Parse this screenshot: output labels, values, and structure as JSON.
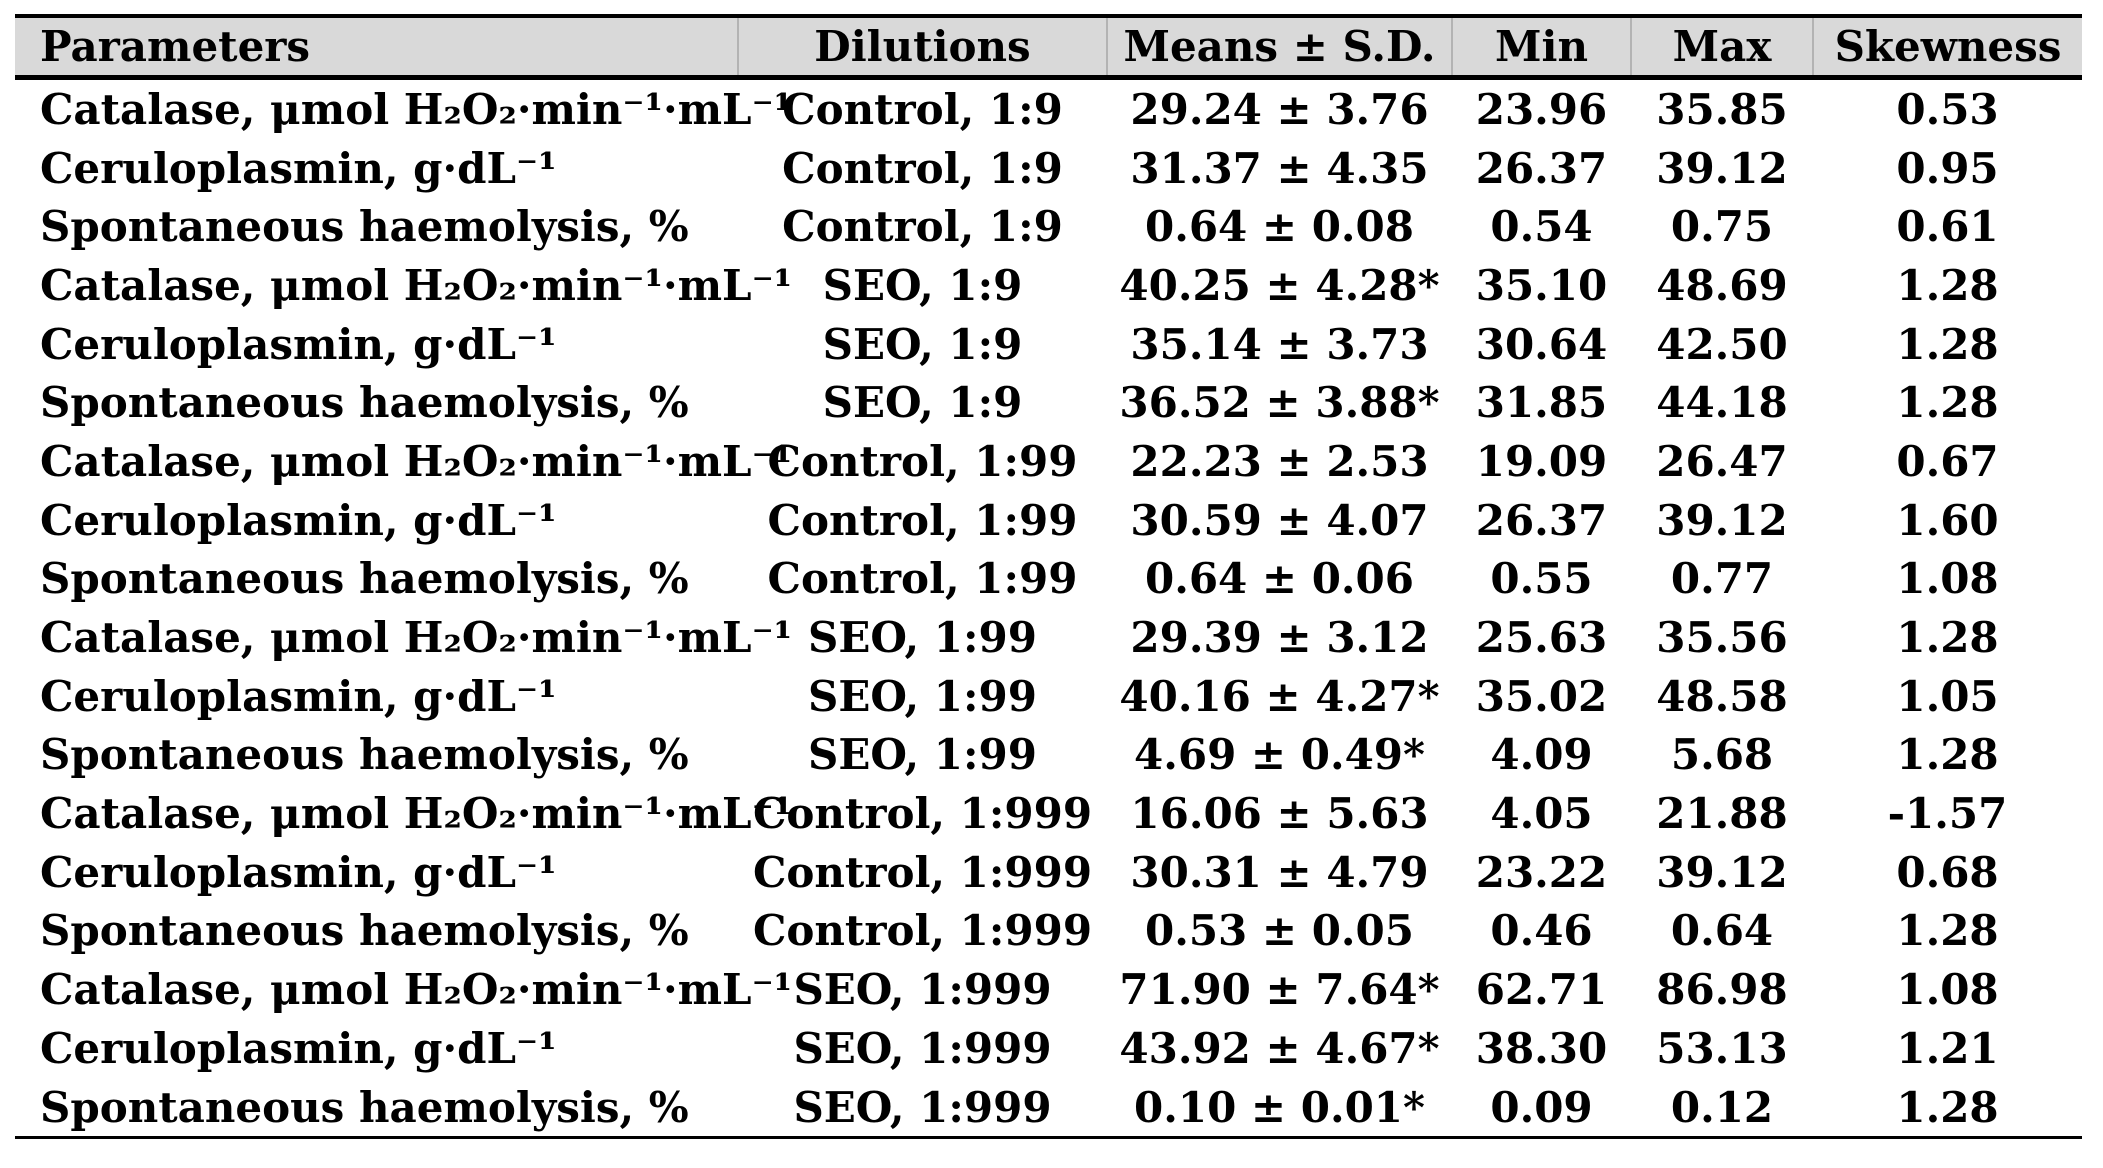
{
  "table": {
    "columns": [
      "Parameters",
      "Dilutions",
      "Means ± S.D.",
      "Min",
      "Max",
      "Skewness"
    ],
    "rows": [
      {
        "parameter": "Catalase, μmol H₂O₂·min⁻¹·mL⁻¹",
        "dilution": "Control, 1:9",
        "mean_sd": "29.24 ± 3.76",
        "min": "23.96",
        "max": "35.85",
        "skewness": "0.53"
      },
      {
        "parameter": "Ceruloplasmin, g·dL⁻¹",
        "dilution": "Control, 1:9",
        "mean_sd": "31.37 ± 4.35",
        "min": "26.37",
        "max": "39.12",
        "skewness": "0.95"
      },
      {
        "parameter": "Spontaneous haemolysis, %",
        "dilution": "Control, 1:9",
        "mean_sd": "0.64 ± 0.08",
        "min": "0.54",
        "max": "0.75",
        "skewness": "0.61"
      },
      {
        "parameter": "Catalase, μmol H₂O₂·min⁻¹·mL⁻¹",
        "dilution": "SEO, 1:9",
        "mean_sd": "40.25 ± 4.28*",
        "min": "35.10",
        "max": "48.69",
        "skewness": "1.28"
      },
      {
        "parameter": "Ceruloplasmin, g·dL⁻¹",
        "dilution": "SEO, 1:9",
        "mean_sd": "35.14 ± 3.73",
        "min": "30.64",
        "max": "42.50",
        "skewness": "1.28"
      },
      {
        "parameter": "Spontaneous haemolysis, %",
        "dilution": "SEO, 1:9",
        "mean_sd": "36.52 ± 3.88*",
        "min": "31.85",
        "max": "44.18",
        "skewness": "1.28"
      },
      {
        "parameter": "Catalase, μmol H₂O₂·min⁻¹·mL⁻¹",
        "dilution": "Control, 1:99",
        "mean_sd": "22.23 ± 2.53",
        "min": "19.09",
        "max": "26.47",
        "skewness": "0.67"
      },
      {
        "parameter": "Ceruloplasmin, g·dL⁻¹",
        "dilution": "Control, 1:99",
        "mean_sd": "30.59 ± 4.07",
        "min": "26.37",
        "max": "39.12",
        "skewness": "1.60"
      },
      {
        "parameter": "Spontaneous haemolysis, %",
        "dilution": "Control, 1:99",
        "mean_sd": "0.64 ± 0.06",
        "min": "0.55",
        "max": "0.77",
        "skewness": "1.08"
      },
      {
        "parameter": "Catalase, μmol H₂O₂·min⁻¹·mL⁻¹",
        "dilution": "SEO, 1:99",
        "mean_sd": "29.39 ± 3.12",
        "min": "25.63",
        "max": "35.56",
        "skewness": "1.28"
      },
      {
        "parameter": "Ceruloplasmin, g·dL⁻¹",
        "dilution": "SEO, 1:99",
        "mean_sd": "40.16 ± 4.27*",
        "min": "35.02",
        "max": "48.58",
        "skewness": "1.05"
      },
      {
        "parameter": "Spontaneous haemolysis, %",
        "dilution": "SEO, 1:99",
        "mean_sd": "4.69 ± 0.49*",
        "min": "4.09",
        "max": "5.68",
        "skewness": "1.28"
      },
      {
        "parameter": "Catalase, μmol H₂O₂·min⁻¹·mL⁻¹",
        "dilution": "Control, 1:999",
        "mean_sd": "16.06 ± 5.63",
        "min": "4.05",
        "max": "21.88",
        "skewness": "-1.57"
      },
      {
        "parameter": "Ceruloplasmin, g·dL⁻¹",
        "dilution": "Control, 1:999",
        "mean_sd": "30.31 ± 4.79",
        "min": "23.22",
        "max": "39.12",
        "skewness": "0.68"
      },
      {
        "parameter": "Spontaneous haemolysis, %",
        "dilution": "Control, 1:999",
        "mean_sd": "0.53 ± 0.05",
        "min": "0.46",
        "max": "0.64",
        "skewness": "1.28"
      },
      {
        "parameter": "Catalase, μmol H₂O₂·min⁻¹·mL⁻¹",
        "dilution": "SEO, 1:999",
        "mean_sd": "71.90 ± 7.64*",
        "min": "62.71",
        "max": "86.98",
        "skewness": "1.08"
      },
      {
        "parameter": "Ceruloplasmin, g·dL⁻¹",
        "dilution": "SEO, 1:999",
        "mean_sd": "43.92 ± 4.67*",
        "min": "38.30",
        "max": "53.13",
        "skewness": "1.21"
      },
      {
        "parameter": "Spontaneous haemolysis, %",
        "dilution": "SEO, 1:999",
        "mean_sd": "0.10 ± 0.01*",
        "min": "0.09",
        "max": "0.12",
        "skewness": "1.28"
      }
    ]
  },
  "style": {
    "header_bg": "#d9d9d9",
    "rule_color": "#000000",
    "header_separator_color": "#b3b3b3",
    "text_color": "#000000"
  }
}
